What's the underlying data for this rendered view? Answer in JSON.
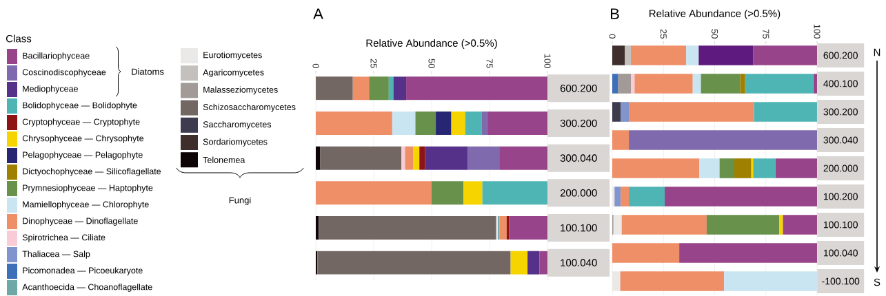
{
  "chart_data": [
    {
      "type": "bar",
      "title": "A",
      "orientation": "horizontal",
      "stacked": true,
      "xlabel": "Relative Abundance (>0.5%)",
      "xlim": [
        0,
        100
      ],
      "xticks": [
        0,
        25,
        50,
        75,
        100
      ],
      "grid": "x",
      "legend": "left",
      "legend_title": "Class",
      "categories": [
        "600.200",
        "300.200",
        "300.040",
        "200.000",
        "100.100",
        "100.040"
      ],
      "annotations": [
        "Diatoms",
        "Fungi"
      ],
      "series": [
        {
          "name": "Telonemea",
          "color": "#0e0406",
          "values": [
            null,
            null,
            2,
            null,
            1.3,
            0.7
          ]
        },
        {
          "name": "Sordariomycetes",
          "color": "#3f2f2c",
          "values": [
            null,
            null,
            null,
            null,
            null,
            null
          ]
        },
        {
          "name": "Saccharomycetes",
          "color": "#3e3b4f",
          "values": [
            null,
            null,
            null,
            null,
            null,
            null
          ]
        },
        {
          "name": "Schizosaccharomycetes",
          "color": "#736764",
          "values": [
            16,
            null,
            35,
            null,
            76.6,
            83.4
          ]
        },
        {
          "name": "Malasseziomycetes",
          "color": "#a19a96",
          "values": [
            null,
            null,
            null,
            null,
            null,
            null
          ]
        },
        {
          "name": "Agaricomycetes",
          "color": "#c4c0be",
          "values": [
            null,
            null,
            null,
            null,
            null,
            null
          ]
        },
        {
          "name": "Eurotiomycetes",
          "color": "#ebe9e8",
          "values": [
            null,
            null,
            null,
            null,
            0.7,
            null
          ]
        },
        {
          "name": "Acanthoecida — Choanoflagellate",
          "color": "#6fa6a6",
          "values": [
            null,
            null,
            null,
            null,
            0.7,
            null
          ]
        },
        {
          "name": "Picomonadea — Picoeukaryote",
          "color": "#3e6fb9",
          "values": [
            null,
            null,
            null,
            null,
            null,
            null
          ]
        },
        {
          "name": "Thaliacea — Salp",
          "color": "#8094cd",
          "values": [
            null,
            null,
            null,
            null,
            null,
            null
          ]
        },
        {
          "name": "Spirotrichea — Ciliate",
          "color": "#f8cbd6",
          "values": [
            null,
            null,
            1.5,
            null,
            null,
            null
          ]
        },
        {
          "name": "Dinophyceae — Dinoflagellate",
          "color": "#ef8f68",
          "values": [
            7,
            33,
            3.5,
            50,
            3.1,
            null
          ]
        },
        {
          "name": "Mamiellophyceae — Chlorophyte",
          "color": "#c9e5f1",
          "values": [
            null,
            10,
            null,
            null,
            null,
            null
          ]
        },
        {
          "name": "Prymnesiophyceae — Haptophyte",
          "color": "#68914c",
          "values": [
            8.5,
            8.8,
            null,
            13.7,
            null,
            null
          ]
        },
        {
          "name": "Dictyochophyceae — Silicoflagellate",
          "color": "#a08000",
          "values": [
            null,
            null,
            null,
            null,
            null,
            null
          ]
        },
        {
          "name": "Pelagophyceae — Pelagophyte",
          "color": "#262673",
          "values": [
            null,
            6.7,
            null,
            null,
            null,
            null
          ]
        },
        {
          "name": "Chrysophyceae — Chrysophyte",
          "color": "#f5d400",
          "values": [
            null,
            6,
            2.7,
            8.2,
            null,
            7.3
          ]
        },
        {
          "name": "Cryptophyceae — Cryptophyte",
          "color": "#8e1414",
          "values": [
            null,
            null,
            2.4,
            null,
            1,
            null
          ]
        },
        {
          "name": "Bolidophyceae — Bolidophyte",
          "color": "#4fb5b4",
          "values": [
            2,
            7.2,
            null,
            28.1,
            null,
            null
          ]
        },
        {
          "name": "Mediophyceae",
          "color": "#55318a",
          "values": [
            5.5,
            null,
            18.4,
            null,
            null,
            5.2
          ]
        },
        {
          "name": "Coscinodiscophyceae",
          "color": "#7f6aae",
          "values": [
            null,
            2.2,
            13.7,
            null,
            null,
            null
          ]
        },
        {
          "name": "Bacillariophyceae",
          "color": "#98448a",
          "values": [
            61,
            26.1,
            20.8,
            null,
            16.6,
            3.4
          ]
        }
      ]
    },
    {
      "type": "bar",
      "title": "B",
      "orientation": "horizontal",
      "stacked": true,
      "xlabel": "Relative Abundance (>0.5%)",
      "xlim": [
        0,
        100
      ],
      "xticks": [
        0,
        25,
        50,
        75,
        100
      ],
      "grid": "x",
      "categories": [
        "600.200",
        "400.100",
        "300.200",
        "300.040",
        "200.000",
        "100.200",
        "100.100",
        "100.040",
        "-100.100"
      ],
      "annotations": [
        "N",
        "S"
      ],
      "series": [
        {
          "color": "#3e6fb9",
          "values": [
            null,
            2.9,
            null,
            null,
            null,
            null,
            null,
            null,
            null
          ]
        },
        {
          "color": "#3f2f2c",
          "values": [
            6.2,
            null,
            null,
            null,
            null,
            null,
            null,
            null,
            null
          ]
        },
        {
          "color": "#3e3b4f",
          "values": [
            null,
            null,
            4.2,
            null,
            null,
            null,
            null,
            null,
            null
          ]
        },
        {
          "color": "#a19a96",
          "values": [
            null,
            6.2,
            null,
            null,
            null,
            null,
            0.6,
            null,
            null
          ]
        },
        {
          "color": "#c4c0be",
          "values": [
            2.9,
            null,
            null,
            null,
            null,
            null,
            null,
            null,
            null
          ]
        },
        {
          "color": "#ebe9e8",
          "values": [
            null,
            null,
            null,
            null,
            null,
            1.1,
            4,
            null,
            3.9
          ]
        },
        {
          "color": "#8094cd",
          "values": [
            null,
            null,
            3.9,
            null,
            null,
            3,
            null,
            null,
            null
          ]
        },
        {
          "color": "#f8cbd6",
          "values": [
            null,
            1.8,
            null,
            null,
            null,
            null,
            null,
            null,
            null
          ]
        },
        {
          "color": "#ef8f68",
          "values": [
            27,
            28.4,
            61.1,
            8.1,
            42.6,
            4,
            41.5,
            32.7,
            50.7
          ]
        },
        {
          "color": "#c9e5f1",
          "values": [
            6.1,
            4,
            null,
            null,
            9.8,
            null,
            null,
            null,
            45.4
          ]
        },
        {
          "color": "#68914c",
          "values": [
            null,
            19.2,
            null,
            null,
            7.2,
            null,
            35.5,
            null,
            null
          ]
        },
        {
          "color": "#a08000",
          "values": [
            null,
            2.4,
            null,
            null,
            8.3,
            null,
            null,
            null,
            null
          ]
        },
        {
          "color": "#f5d400",
          "values": [
            null,
            null,
            null,
            null,
            0.9,
            null,
            1.7,
            null,
            null
          ]
        },
        {
          "color": "#4fb5b4",
          "values": [
            null,
            33.3,
            30.8,
            null,
            10.8,
            17.5,
            null,
            null,
            null
          ]
        },
        {
          "color": "#5f1a7f",
          "values": [
            26.7,
            null,
            null,
            null,
            null,
            null,
            null,
            null,
            null
          ]
        },
        {
          "color": "#7f6aae",
          "values": [
            null,
            null,
            null,
            91.9,
            null,
            null,
            null,
            null,
            null
          ]
        },
        {
          "color": "#98448a",
          "values": [
            31.1,
            1.8,
            null,
            null,
            20.4,
            74.4,
            16.7,
            67.3,
            null
          ]
        }
      ]
    }
  ]
}
